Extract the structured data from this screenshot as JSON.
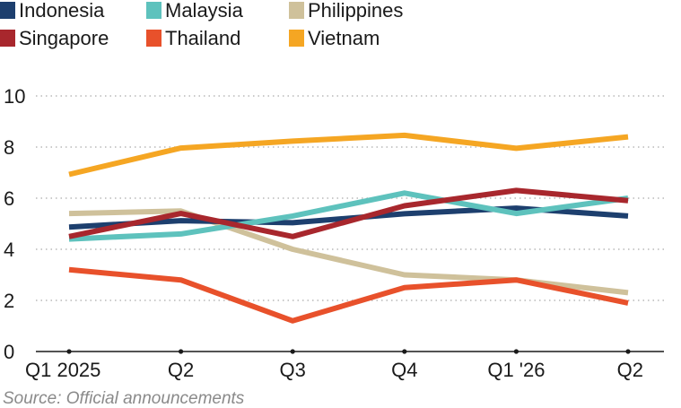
{
  "chart_data": {
    "type": "line",
    "categories": [
      "Q1 2025",
      "Q2",
      "Q3",
      "Q4",
      "Q1 '26",
      "Q2"
    ],
    "ylim": [
      0,
      10
    ],
    "yticks": [
      0,
      2,
      4,
      6,
      8,
      10
    ],
    "grid": true,
    "legend_position": "top",
    "series": [
      {
        "name": "Indonesia",
        "color": "#1d3f6e",
        "values": [
          4.87,
          5.12,
          5.04,
          5.39,
          5.61,
          5.3
        ]
      },
      {
        "name": "Malaysia",
        "color": "#5ec2bd",
        "values": [
          4.4,
          4.6,
          5.3,
          6.2,
          5.4,
          6.0
        ]
      },
      {
        "name": "Philippines",
        "color": "#cfc19b",
        "values": [
          5.4,
          5.5,
          4.0,
          3.0,
          2.8,
          2.3
        ]
      },
      {
        "name": "Singapore",
        "color": "#a8272d",
        "values": [
          4.5,
          5.4,
          4.5,
          5.7,
          6.3,
          5.9
        ]
      },
      {
        "name": "Thailand",
        "color": "#e8512b",
        "values": [
          3.2,
          2.8,
          1.2,
          2.5,
          2.8,
          1.9
        ]
      },
      {
        "name": "Vietnam",
        "color": "#f5a623",
        "values": [
          6.93,
          7.96,
          8.23,
          8.46,
          7.95,
          8.4
        ]
      }
    ],
    "source": "Source: Official announcements"
  }
}
